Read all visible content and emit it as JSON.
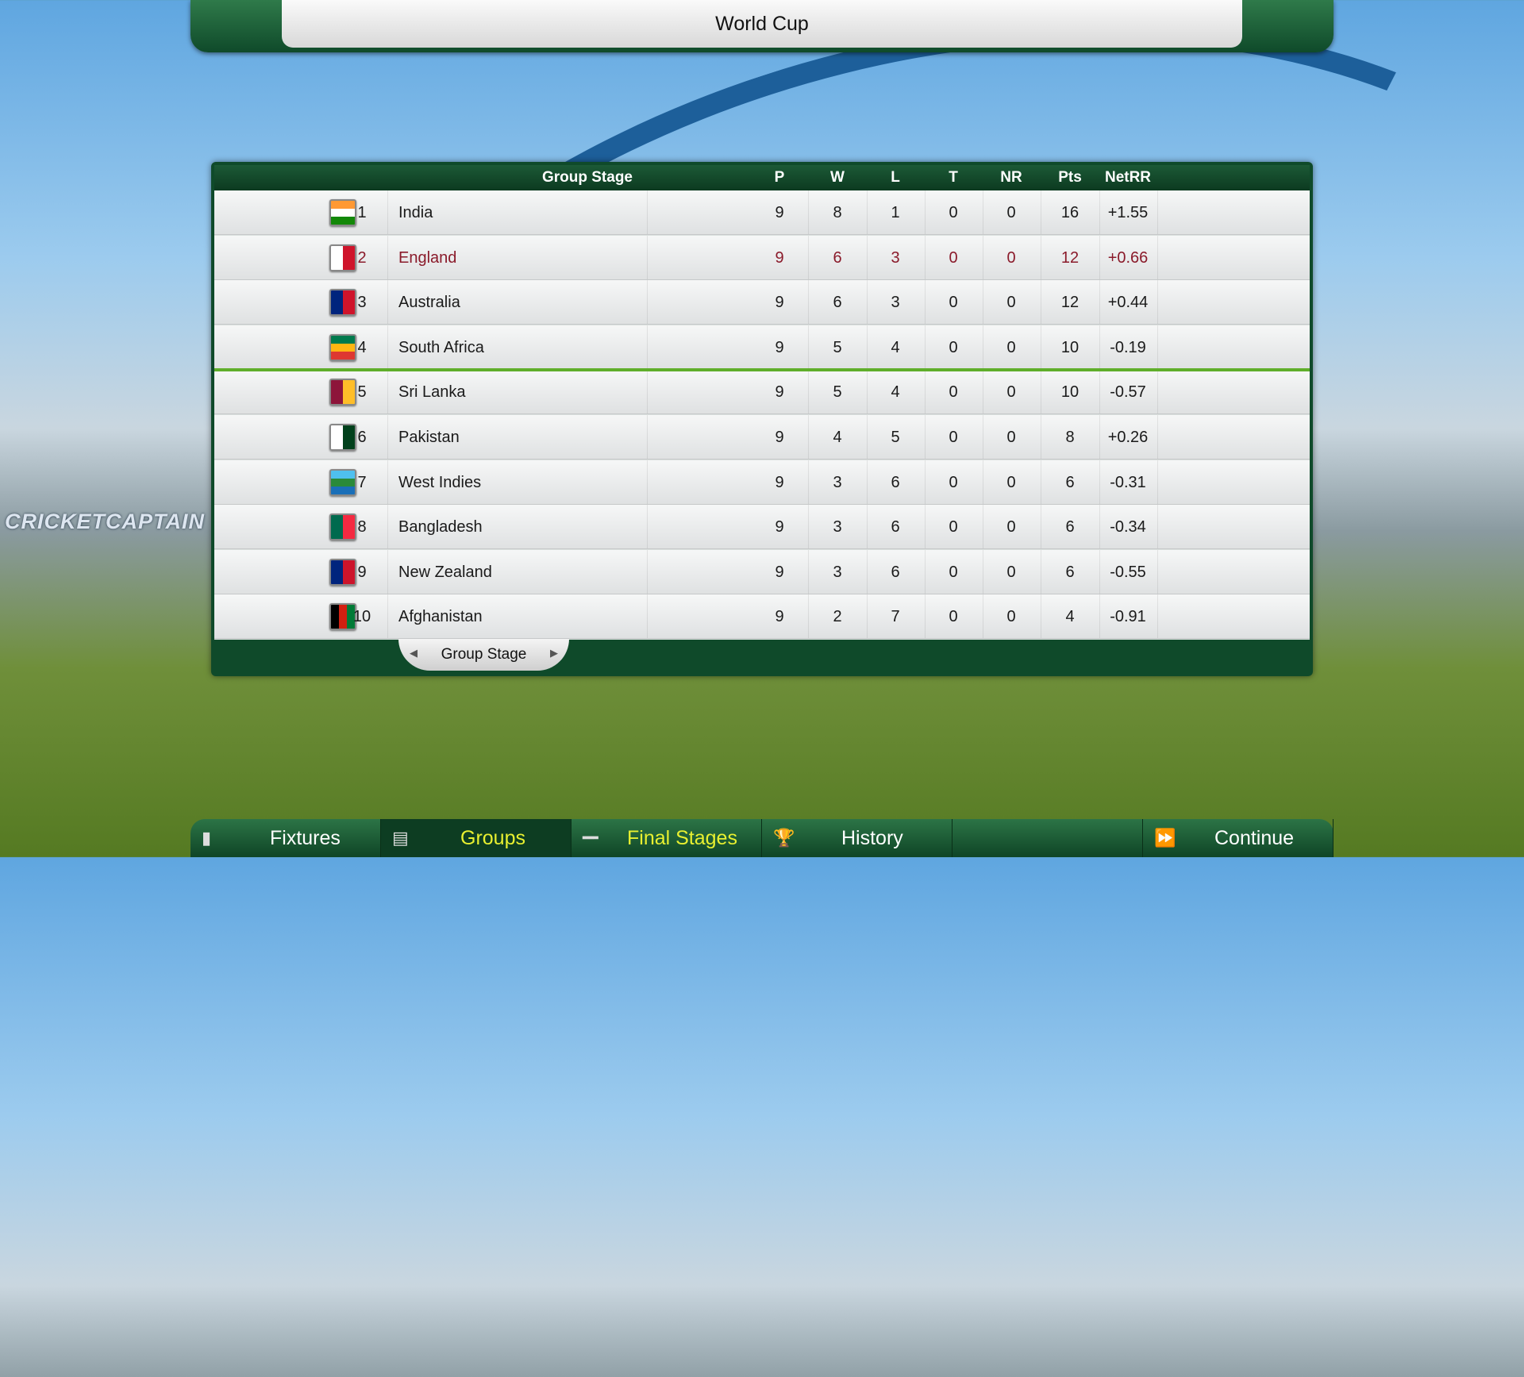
{
  "title": "World Cup",
  "watermark": "CRICKETCAPTAIN",
  "table": {
    "headers": {
      "name": "Group Stage",
      "p": "P",
      "w": "W",
      "l": "L",
      "t": "T",
      "nr": "NR",
      "pts": "Pts",
      "nrr": "NetRR"
    },
    "highlighted_team": "England",
    "qualification_line_after": 4,
    "rows": [
      {
        "rank": "1",
        "team": "India",
        "p": "9",
        "w": "8",
        "l": "1",
        "t": "0",
        "nr": "0",
        "pts": "16",
        "nrr": "+1.55",
        "flag": [
          "#ff9933",
          "#ffffff",
          "#138808"
        ]
      },
      {
        "rank": "2",
        "team": "England",
        "p": "9",
        "w": "6",
        "l": "3",
        "t": "0",
        "nr": "0",
        "pts": "12",
        "nrr": "+0.66",
        "flag": [
          "#ffffff",
          "#cf142b"
        ]
      },
      {
        "rank": "3",
        "team": "Australia",
        "p": "9",
        "w": "6",
        "l": "3",
        "t": "0",
        "nr": "0",
        "pts": "12",
        "nrr": "+0.44",
        "flag": [
          "#00247d",
          "#cf142b"
        ]
      },
      {
        "rank": "4",
        "team": "South Africa",
        "p": "9",
        "w": "5",
        "l": "4",
        "t": "0",
        "nr": "0",
        "pts": "10",
        "nrr": "-0.19",
        "flag": [
          "#007a4d",
          "#ffb612",
          "#de3831"
        ]
      },
      {
        "rank": "5",
        "team": "Sri Lanka",
        "p": "9",
        "w": "5",
        "l": "4",
        "t": "0",
        "nr": "0",
        "pts": "10",
        "nrr": "-0.57",
        "flag": [
          "#8d153a",
          "#ffbe29"
        ]
      },
      {
        "rank": "6",
        "team": "Pakistan",
        "p": "9",
        "w": "4",
        "l": "5",
        "t": "0",
        "nr": "0",
        "pts": "8",
        "nrr": "+0.26",
        "flag": [
          "#ffffff",
          "#01411c"
        ]
      },
      {
        "rank": "7",
        "team": "West Indies",
        "p": "9",
        "w": "3",
        "l": "6",
        "t": "0",
        "nr": "0",
        "pts": "6",
        "nrr": "-0.31",
        "flag": [
          "#4fc0ef",
          "#2a8a3a",
          "#1a6fb8"
        ]
      },
      {
        "rank": "8",
        "team": "Bangladesh",
        "p": "9",
        "w": "3",
        "l": "6",
        "t": "0",
        "nr": "0",
        "pts": "6",
        "nrr": "-0.34",
        "flag": [
          "#006a4e",
          "#f42a41"
        ]
      },
      {
        "rank": "9",
        "team": "New Zealand",
        "p": "9",
        "w": "3",
        "l": "6",
        "t": "0",
        "nr": "0",
        "pts": "6",
        "nrr": "-0.55",
        "flag": [
          "#00247d",
          "#cc142b"
        ]
      },
      {
        "rank": "10",
        "team": "Afghanistan",
        "p": "9",
        "w": "2",
        "l": "7",
        "t": "0",
        "nr": "0",
        "pts": "4",
        "nrr": "-0.91",
        "flag": [
          "#000000",
          "#d32011",
          "#007a36"
        ]
      }
    ],
    "stage_tab": "Group Stage"
  },
  "nav": [
    {
      "label": "Fixtures",
      "icon": "clipboard-icon",
      "active": false
    },
    {
      "label": "Groups",
      "icon": "groups-icon",
      "active": true
    },
    {
      "label": "Final Stages",
      "icon": "bracket-icon",
      "active": false
    },
    {
      "label": "History",
      "icon": "trophy-icon",
      "active": false
    },
    {
      "label": "",
      "icon": "",
      "active": false
    },
    {
      "label": "Continue",
      "icon": "fast-forward-icon",
      "active": false
    }
  ],
  "colors": {
    "accent_green": "#0f4a2a",
    "highlight_text": "#8a1a2a",
    "nav_highlight": "#e8f030",
    "qualify_line": "#5fae2a"
  }
}
